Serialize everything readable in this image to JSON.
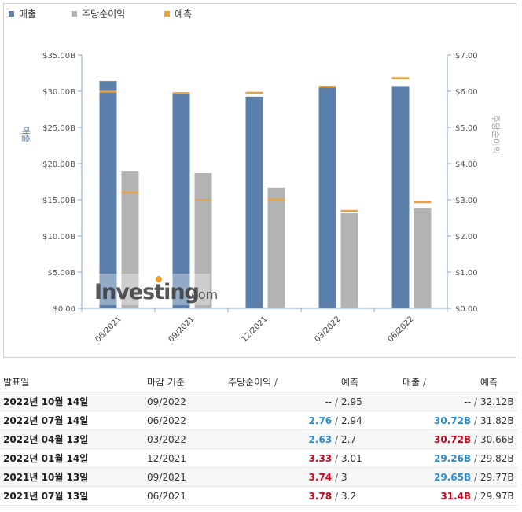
{
  "chart_data": {
    "type": "bar",
    "legend": [
      {
        "label": "매출",
        "color": "#5b7fab",
        "marker": "square"
      },
      {
        "label": "주당순이익",
        "color": "#b3b3b3",
        "marker": "square"
      },
      {
        "label": "예측",
        "color": "#e8a33c",
        "marker": "square"
      }
    ],
    "legend_position": "top-left",
    "categories": [
      "06/2021",
      "09/2021",
      "12/2021",
      "03/2022",
      "06/2022"
    ],
    "series": [
      {
        "name": "매출",
        "axis": "left",
        "color": "#5b7fab",
        "values": [
          31.4,
          29.65,
          29.26,
          30.72,
          30.72
        ]
      },
      {
        "name": "주당순이익",
        "axis": "right",
        "color": "#b3b3b3",
        "values": [
          3.78,
          3.74,
          3.33,
          2.63,
          2.76
        ]
      }
    ],
    "forecast": {
      "name": "예측",
      "color": "#e8a33c",
      "revenue": [
        29.97,
        29.77,
        29.82,
        30.66,
        31.82
      ],
      "eps": [
        3.2,
        3,
        3.01,
        2.7,
        2.94
      ]
    },
    "y_left": {
      "label": "매출",
      "range": [
        0,
        35
      ],
      "tick_values": [
        0,
        5,
        10,
        15,
        20,
        25,
        30,
        35
      ],
      "tick_labels": [
        "$0.00",
        "$5.00B",
        "$10.00B",
        "$15.00B",
        "$20.00B",
        "$25.00B",
        "$30.00B",
        "$35.00B"
      ]
    },
    "y_right": {
      "label": "주당순이익",
      "range": [
        0,
        7
      ],
      "tick_values": [
        0,
        1,
        2,
        3,
        4,
        5,
        6,
        7
      ],
      "tick_labels": [
        "$0.00",
        "$1.00",
        "$2.00",
        "$3.00",
        "$4.00",
        "$5.00",
        "$6.00",
        "$7.00"
      ]
    },
    "grid": false,
    "watermark": "Investing.com"
  },
  "table": {
    "headers": {
      "date": "발표일",
      "period": "마감 기준",
      "eps": "주당순이익",
      "eps_forecast": "예측",
      "revenue": "매출",
      "revenue_forecast": "예측",
      "sep": "/"
    },
    "rows": [
      {
        "date": "2022년 10월 14일",
        "period": "09/2022",
        "eps": "--",
        "eps_forecast": "2.95",
        "revenue": "--",
        "revenue_forecast": "32.12B",
        "eps_state": "plain",
        "rev_state": "plain"
      },
      {
        "date": "2022년 07월 14일",
        "period": "06/2022",
        "eps": "2.76",
        "eps_forecast": "2.94",
        "revenue": "30.72B",
        "revenue_forecast": "31.82B",
        "eps_state": "up",
        "rev_state": "up"
      },
      {
        "date": "2022년 04월 13일",
        "period": "03/2022",
        "eps": "2.63",
        "eps_forecast": "2.7",
        "revenue": "30.72B",
        "revenue_forecast": "30.66B",
        "eps_state": "up",
        "rev_state": "down"
      },
      {
        "date": "2022년 01월 14일",
        "period": "12/2021",
        "eps": "3.33",
        "eps_forecast": "3.01",
        "revenue": "29.26B",
        "revenue_forecast": "29.82B",
        "eps_state": "down",
        "rev_state": "up"
      },
      {
        "date": "2021년 10월 13일",
        "period": "09/2021",
        "eps": "3.74",
        "eps_forecast": "3",
        "revenue": "29.65B",
        "revenue_forecast": "29.77B",
        "eps_state": "down",
        "rev_state": "up"
      },
      {
        "date": "2021년 07월 13일",
        "period": "06/2021",
        "eps": "3.78",
        "eps_forecast": "3.2",
        "revenue": "31.4B",
        "revenue_forecast": "29.97B",
        "eps_state": "down",
        "rev_state": "down"
      }
    ]
  }
}
